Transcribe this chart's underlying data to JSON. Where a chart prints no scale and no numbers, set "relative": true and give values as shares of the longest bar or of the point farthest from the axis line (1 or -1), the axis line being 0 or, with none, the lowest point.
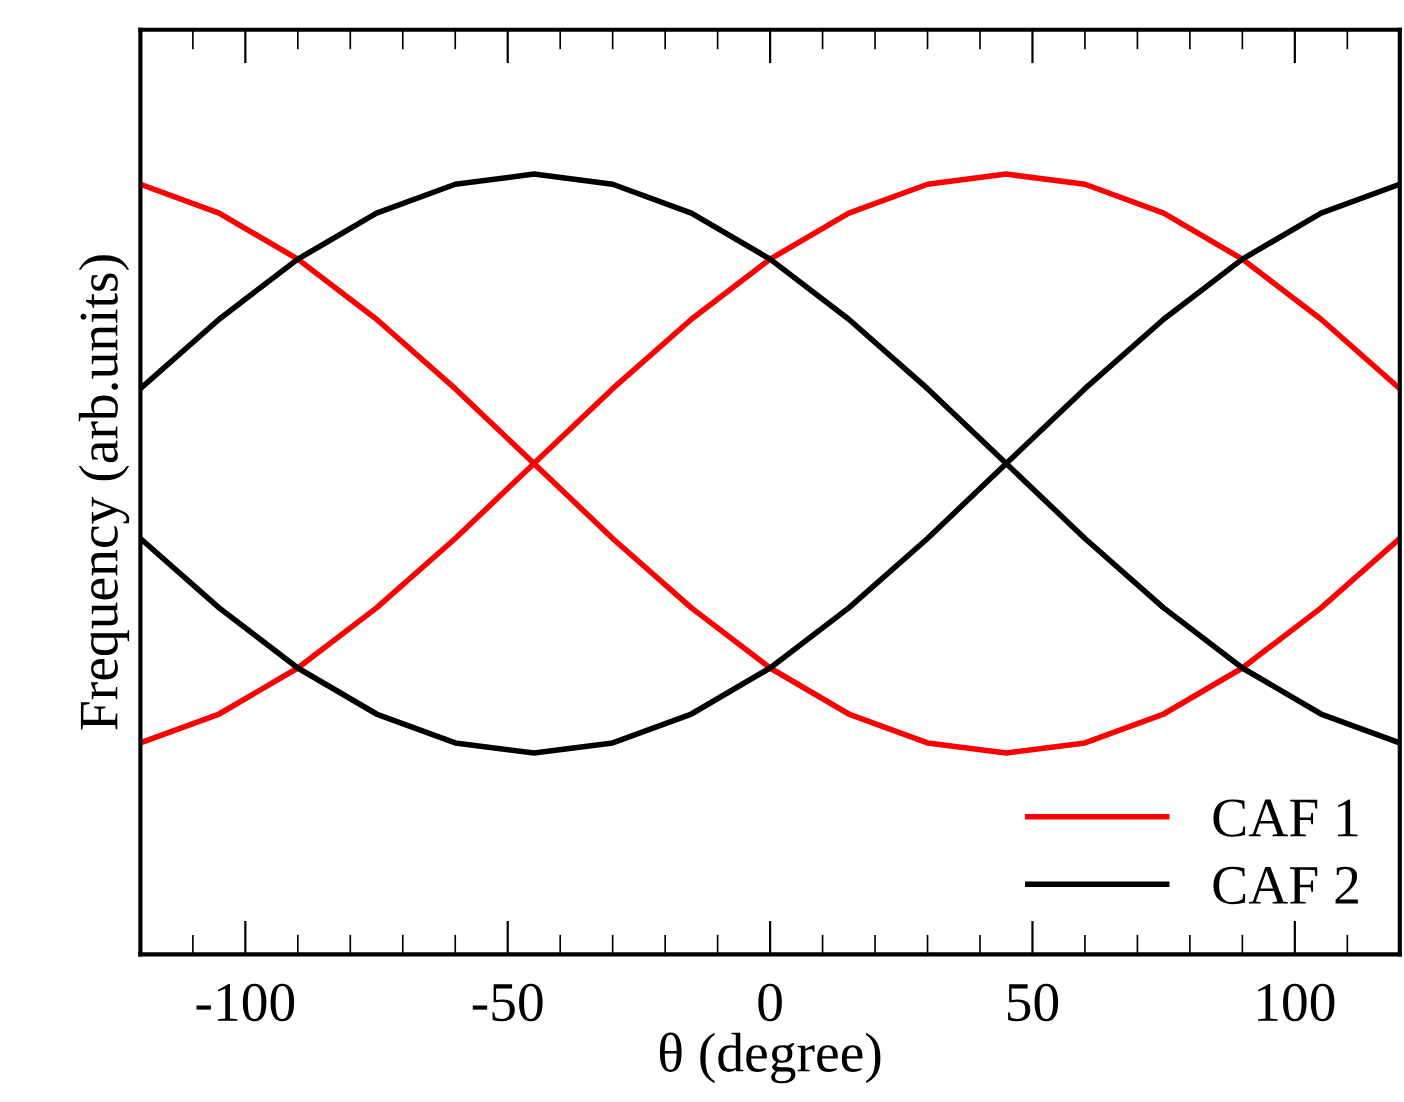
{
  "chart_data": {
    "type": "line",
    "relative": true,
    "xlabel": "θ (degree)",
    "ylabel": "Frequency (arb.units)",
    "x": [
      -120,
      -105,
      -90,
      -75,
      -60,
      -45,
      -30,
      -15,
      0,
      15,
      30,
      45,
      60,
      75,
      90,
      105,
      120
    ],
    "xlim": [
      -120,
      120
    ],
    "xticks": [
      -100,
      -50,
      0,
      50,
      100
    ],
    "series": [
      {
        "name": "CAF 1",
        "color": "#ff0000",
        "values": [
          0.271,
          0.308,
          0.367,
          0.444,
          0.533,
          0.629,
          0.725,
          0.814,
          0.891,
          0.95,
          0.987,
          1.0,
          0.987,
          0.95,
          0.891,
          0.814,
          0.725
        ]
      },
      {
        "color": "#ff0000",
        "values": [
          0.987,
          0.95,
          0.891,
          0.814,
          0.725,
          0.629,
          0.533,
          0.444,
          0.367,
          0.308,
          0.271,
          0.258,
          0.271,
          0.308,
          0.367,
          0.444,
          0.533
        ]
      },
      {
        "name": "CAF 2",
        "color": "#000000",
        "values": [
          0.725,
          0.814,
          0.891,
          0.95,
          0.987,
          1.0,
          0.987,
          0.95,
          0.891,
          0.814,
          0.725,
          0.629,
          0.533,
          0.444,
          0.367,
          0.308,
          0.271
        ]
      },
      {
        "color": "#000000",
        "values": [
          0.533,
          0.444,
          0.367,
          0.308,
          0.271,
          0.258,
          0.271,
          0.308,
          0.367,
          0.444,
          0.533,
          0.629,
          0.725,
          0.814,
          0.891,
          0.95,
          0.987
        ]
      }
    ],
    "legend": "bottom right",
    "grid": false,
    "tick_labels": "x",
    "line_style": "solid",
    "marker": "none"
  }
}
